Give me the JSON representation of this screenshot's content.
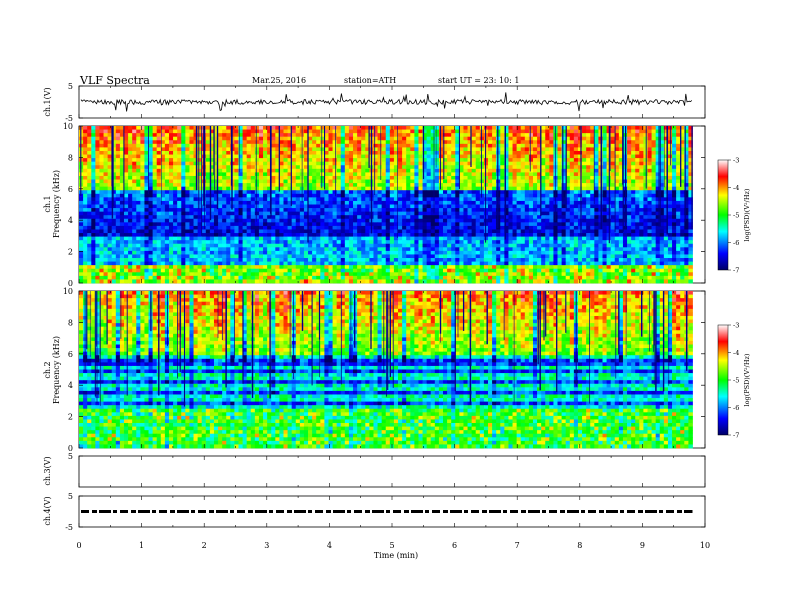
{
  "header": {
    "title": "VLF  Spectra",
    "date": "Mar.25, 2016",
    "station": "station=ATH",
    "start": "start  UT  =   23: 10: 1"
  },
  "chart_data": {
    "type": "heatmap",
    "xlabel": "Time  (min)",
    "xlim": [
      0,
      10
    ],
    "x_ticks": [
      "0",
      "1",
      "2",
      "3",
      "4",
      "5",
      "6",
      "7",
      "8",
      "9",
      "10"
    ],
    "data_end_min": 9.8,
    "panels": [
      {
        "id": "ch1_wave",
        "label": "ch.1(V)",
        "type": "line",
        "ylim": [
          -5,
          5
        ],
        "y_ticks": [
          "5",
          "-5"
        ],
        "baseline": 0
      },
      {
        "id": "ch1_spec",
        "label": "ch.1",
        "ylabel": "Frequency  (kHz)",
        "type": "heatmap",
        "ylim": [
          0,
          10
        ],
        "y_ticks": [
          "0",
          "2",
          "4",
          "6",
          "8",
          "10"
        ],
        "colorbar": {
          "label": "log(PSD)(V²/Hz)",
          "ticks": [
            "-3",
            "-4",
            "-5",
            "-6",
            "-7"
          ],
          "range": [
            -7,
            -3
          ]
        }
      },
      {
        "id": "ch2_spec",
        "label": "ch.2",
        "ylabel": "Frequency  (kHz)",
        "type": "heatmap",
        "ylim": [
          0,
          10
        ],
        "y_ticks": [
          "0",
          "2",
          "4",
          "6",
          "8",
          "10"
        ],
        "colorbar": {
          "label": "log(PSD)(V²/Hz)",
          "ticks": [
            "-3",
            "-4",
            "-5",
            "-6",
            "-7"
          ],
          "range": [
            -7,
            -3
          ]
        }
      },
      {
        "id": "ch3_wave",
        "label": "ch.3(V)",
        "type": "line",
        "ylim": [
          -5,
          5
        ],
        "y_ticks": [
          "5"
        ]
      },
      {
        "id": "ch4_wave",
        "label": "ch.4(V)",
        "type": "line",
        "ylim": [
          -5,
          5
        ],
        "y_ticks": [
          "5",
          "-5"
        ],
        "baseline": 0
      }
    ],
    "colormap": [
      "#000066",
      "#0000ff",
      "#00ffff",
      "#00ff00",
      "#ffff00",
      "#ff0000",
      "#ffffff"
    ]
  }
}
